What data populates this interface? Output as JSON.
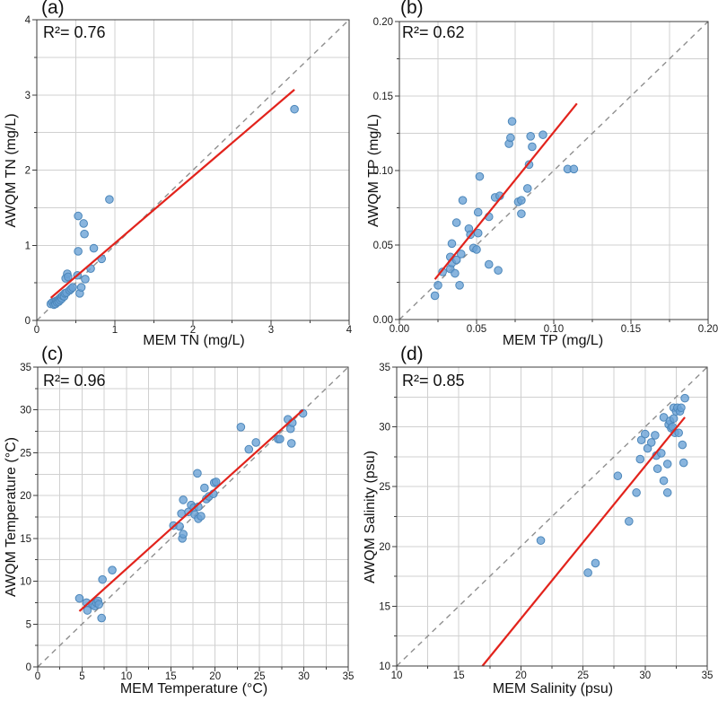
{
  "colors": {
    "point_fill": "#6ba3d6",
    "point_stroke": "#4d87ba",
    "regression_line": "#e2231c",
    "identity_line": "#8f8f8f",
    "grid": "#d0d0d0",
    "axis_frame": "#3c3c3c",
    "tick": "#3c3c3c",
    "text": "#1a1a1a"
  },
  "chart_data": [
    {
      "type": "scatter",
      "panel_label": "(a)",
      "annotation": "R²= 0.76",
      "r_squared": 0.76,
      "xlabel": "MEM TN (mg/L)",
      "ylabel": "AWQM TN (mg/L)",
      "xlim": [
        0,
        4
      ],
      "ylim": [
        0,
        4
      ],
      "tick_step": 1,
      "grid_step": 0.5,
      "tick_decimals": 0,
      "grid": true,
      "legend": "none",
      "identity_line": {
        "x": [
          0,
          4
        ],
        "y": [
          0,
          4
        ],
        "style": "dashed"
      },
      "regression_line": {
        "x": [
          0.18,
          3.3
        ],
        "y": [
          0.3,
          3.07
        ]
      },
      "points": [
        [
          0.18,
          0.22
        ],
        [
          0.2,
          0.24
        ],
        [
          0.22,
          0.21
        ],
        [
          0.23,
          0.25
        ],
        [
          0.24,
          0.22
        ],
        [
          0.25,
          0.26
        ],
        [
          0.26,
          0.24
        ],
        [
          0.27,
          0.27
        ],
        [
          0.28,
          0.25
        ],
        [
          0.29,
          0.29
        ],
        [
          0.3,
          0.27
        ],
        [
          0.31,
          0.31
        ],
        [
          0.32,
          0.29
        ],
        [
          0.33,
          0.33
        ],
        [
          0.35,
          0.32
        ],
        [
          0.36,
          0.36
        ],
        [
          0.37,
          0.56
        ],
        [
          0.38,
          0.37
        ],
        [
          0.39,
          0.62
        ],
        [
          0.4,
          0.58
        ],
        [
          0.42,
          0.4
        ],
        [
          0.44,
          0.42
        ],
        [
          0.46,
          0.44
        ],
        [
          0.52,
          0.6
        ],
        [
          0.53,
          0.92
        ],
        [
          0.53,
          1.39
        ],
        [
          0.55,
          0.36
        ],
        [
          0.57,
          0.44
        ],
        [
          0.6,
          1.29
        ],
        [
          0.61,
          1.15
        ],
        [
          0.62,
          0.55
        ],
        [
          0.69,
          0.69
        ],
        [
          0.73,
          0.96
        ],
        [
          0.83,
          0.82
        ],
        [
          0.93,
          1.61
        ],
        [
          3.3,
          2.81
        ]
      ]
    },
    {
      "type": "scatter",
      "panel_label": "(b)",
      "annotation": "R²= 0.62",
      "r_squared": 0.62,
      "xlabel": "MEM TP (mg/L)",
      "ylabel": "AWQM TP (mg/L)",
      "xlim": [
        0,
        0.2
      ],
      "ylim": [
        0,
        0.2
      ],
      "tick_step": 0.05,
      "grid_step": 0.025,
      "tick_decimals": 2,
      "grid": true,
      "legend": "none",
      "identity_line": {
        "x": [
          0,
          0.2
        ],
        "y": [
          0,
          0.2
        ],
        "style": "dashed"
      },
      "regression_line": {
        "x": [
          0.023,
          0.115
        ],
        "y": [
          0.027,
          0.145
        ]
      },
      "points": [
        [
          0.023,
          0.016
        ],
        [
          0.025,
          0.023
        ],
        [
          0.028,
          0.032
        ],
        [
          0.033,
          0.034
        ],
        [
          0.033,
          0.042
        ],
        [
          0.034,
          0.051
        ],
        [
          0.034,
          0.038
        ],
        [
          0.036,
          0.031
        ],
        [
          0.037,
          0.04
        ],
        [
          0.037,
          0.065
        ],
        [
          0.039,
          0.023
        ],
        [
          0.04,
          0.044
        ],
        [
          0.041,
          0.08
        ],
        [
          0.045,
          0.061
        ],
        [
          0.046,
          0.057
        ],
        [
          0.048,
          0.048
        ],
        [
          0.05,
          0.047
        ],
        [
          0.051,
          0.058
        ],
        [
          0.051,
          0.072
        ],
        [
          0.052,
          0.096
        ],
        [
          0.058,
          0.037
        ],
        [
          0.058,
          0.069
        ],
        [
          0.062,
          0.082
        ],
        [
          0.064,
          0.033
        ],
        [
          0.065,
          0.083
        ],
        [
          0.071,
          0.118
        ],
        [
          0.072,
          0.122
        ],
        [
          0.073,
          0.133
        ],
        [
          0.077,
          0.079
        ],
        [
          0.079,
          0.071
        ],
        [
          0.079,
          0.08
        ],
        [
          0.083,
          0.088
        ],
        [
          0.084,
          0.104
        ],
        [
          0.085,
          0.123
        ],
        [
          0.086,
          0.116
        ],
        [
          0.093,
          0.124
        ],
        [
          0.109,
          0.101
        ],
        [
          0.113,
          0.101
        ]
      ]
    },
    {
      "type": "scatter",
      "panel_label": "(c)",
      "annotation": "R²= 0.96",
      "r_squared": 0.96,
      "xlabel": "MEM Temperature (°C)",
      "ylabel": "AWQM Temperature (°C)",
      "xlim": [
        0,
        35
      ],
      "ylim": [
        0,
        35
      ],
      "tick_step": 5,
      "grid_step": 2.5,
      "tick_decimals": 0,
      "grid": true,
      "legend": "none",
      "identity_line": {
        "x": [
          0,
          35
        ],
        "y": [
          0,
          35
        ],
        "style": "dashed"
      },
      "regression_line": {
        "x": [
          4.7,
          29.9
        ],
        "y": [
          6.5,
          30.0
        ]
      },
      "points": [
        [
          4.7,
          8.0
        ],
        [
          5.5,
          7.5
        ],
        [
          5.6,
          6.6
        ],
        [
          6.2,
          7.3
        ],
        [
          6.4,
          7.1
        ],
        [
          6.6,
          7.5
        ],
        [
          6.8,
          7.7
        ],
        [
          6.9,
          7.3
        ],
        [
          7.2,
          5.7
        ],
        [
          7.3,
          10.2
        ],
        [
          8.4,
          11.3
        ],
        [
          15.3,
          16.5
        ],
        [
          16.0,
          16.4
        ],
        [
          16.2,
          17.9
        ],
        [
          16.3,
          15.0
        ],
        [
          16.4,
          15.5
        ],
        [
          16.4,
          19.5
        ],
        [
          17.0,
          18.1
        ],
        [
          17.3,
          18.9
        ],
        [
          17.6,
          18.6
        ],
        [
          17.7,
          17.8
        ],
        [
          18.0,
          22.6
        ],
        [
          18.1,
          18.7
        ],
        [
          18.1,
          17.3
        ],
        [
          18.4,
          17.6
        ],
        [
          18.8,
          20.9
        ],
        [
          19.0,
          19.6
        ],
        [
          19.3,
          19.9
        ],
        [
          19.8,
          20.2
        ],
        [
          19.9,
          21.5
        ],
        [
          20.1,
          21.6
        ],
        [
          22.9,
          28.0
        ],
        [
          23.8,
          25.4
        ],
        [
          24.6,
          26.2
        ],
        [
          27.1,
          26.6
        ],
        [
          27.3,
          26.6
        ],
        [
          28.2,
          28.9
        ],
        [
          28.5,
          27.8
        ],
        [
          28.6,
          26.1
        ],
        [
          28.7,
          28.5
        ],
        [
          29.9,
          29.6
        ]
      ]
    },
    {
      "type": "scatter",
      "panel_label": "(d)",
      "annotation": "R²= 0.85",
      "r_squared": 0.85,
      "xlabel": "MEM Salinity (psu)",
      "ylabel": "AWQM Salinity (psu)",
      "xlim": [
        10,
        35
      ],
      "ylim": [
        10,
        35
      ],
      "tick_step": 5,
      "grid_step": 2.5,
      "tick_decimals": 0,
      "grid": true,
      "legend": "none",
      "identity_line": {
        "x": [
          10,
          35
        ],
        "y": [
          10,
          35
        ],
        "style": "dashed"
      },
      "regression_line": {
        "x": [
          16.9,
          33.2
        ],
        "y": [
          10.0,
          30.8
        ]
      },
      "points": [
        [
          21.6,
          20.5
        ],
        [
          25.4,
          17.8
        ],
        [
          26.0,
          18.6
        ],
        [
          27.8,
          25.9
        ],
        [
          28.7,
          22.1
        ],
        [
          29.3,
          24.5
        ],
        [
          29.6,
          27.3
        ],
        [
          29.7,
          28.9
        ],
        [
          30.0,
          29.4
        ],
        [
          30.2,
          28.2
        ],
        [
          30.5,
          28.7
        ],
        [
          30.8,
          29.3
        ],
        [
          30.9,
          27.6
        ],
        [
          31.0,
          26.5
        ],
        [
          31.3,
          27.8
        ],
        [
          31.5,
          30.8
        ],
        [
          31.5,
          25.5
        ],
        [
          31.8,
          26.9
        ],
        [
          31.8,
          24.5
        ],
        [
          31.9,
          30.2
        ],
        [
          32.0,
          30.5
        ],
        [
          32.1,
          29.9
        ],
        [
          32.2,
          30.0
        ],
        [
          32.3,
          30.7
        ],
        [
          32.3,
          31.6
        ],
        [
          32.4,
          29.5
        ],
        [
          32.5,
          31.3
        ],
        [
          32.6,
          31.6
        ],
        [
          32.7,
          29.5
        ],
        [
          32.8,
          31.3
        ],
        [
          32.9,
          31.6
        ],
        [
          33.0,
          28.5
        ],
        [
          33.1,
          27.0
        ],
        [
          33.2,
          32.4
        ]
      ]
    }
  ]
}
